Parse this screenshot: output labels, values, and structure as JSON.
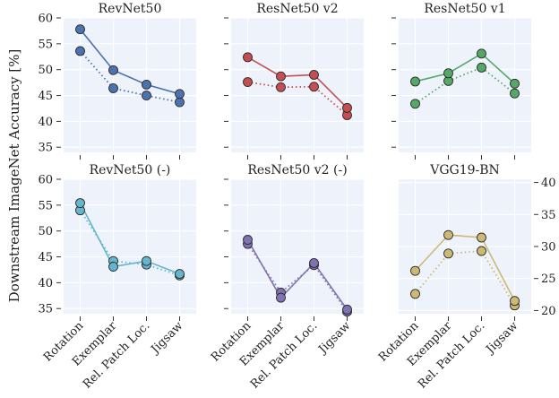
{
  "figure": {
    "ylabel": "Downstream ImageNet Accuracy [%]"
  },
  "chart_data": [
    {
      "type": "line",
      "title": "RevNet50",
      "color": "#4c72b0",
      "categories": [
        "Rotation",
        "Exemplar",
        "Rel. Patch Loc.",
        "Jigsaw"
      ],
      "ylim": [
        34,
        60
      ],
      "yticks": [
        35,
        40,
        45,
        50,
        55,
        60
      ],
      "grid": true,
      "series": [
        {
          "style": "solid",
          "values": [
            57.8,
            49.9,
            47.1,
            45.3
          ]
        },
        {
          "style": "dotted",
          "values": [
            53.6,
            46.4,
            45.0,
            43.7
          ]
        }
      ]
    },
    {
      "type": "line",
      "title": "ResNet50 v2",
      "color": "#c44e52",
      "categories": [
        "Rotation",
        "Exemplar",
        "Rel. Patch Loc.",
        "Jigsaw"
      ],
      "ylim": [
        34,
        60
      ],
      "yticks": [
        35,
        40,
        45,
        50,
        55,
        60
      ],
      "grid": true,
      "series": [
        {
          "style": "solid",
          "values": [
            52.4,
            48.7,
            49.0,
            42.6
          ]
        },
        {
          "style": "dotted",
          "values": [
            47.6,
            46.6,
            46.7,
            41.2
          ]
        }
      ]
    },
    {
      "type": "line",
      "title": "ResNet50 v1",
      "color": "#55a868",
      "categories": [
        "Rotation",
        "Exemplar",
        "Rel. Patch Loc.",
        "Jigsaw"
      ],
      "ylim": [
        34,
        60
      ],
      "yticks": [
        35,
        40,
        45,
        50,
        55,
        60
      ],
      "grid": true,
      "series": [
        {
          "style": "solid",
          "values": [
            47.7,
            49.3,
            53.1,
            47.3
          ]
        },
        {
          "style": "dotted",
          "values": [
            43.4,
            47.8,
            50.4,
            45.4
          ]
        }
      ]
    },
    {
      "type": "line",
      "title": "RevNet50 (-)",
      "color": "#64b5cd",
      "categories": [
        "Rotation",
        "Exemplar",
        "Rel. Patch Loc.",
        "Jigsaw"
      ],
      "ylim": [
        34,
        60
      ],
      "yticks": [
        35,
        40,
        45,
        50,
        55,
        60
      ],
      "grid": true,
      "series": [
        {
          "style": "solid",
          "values": [
            55.4,
            43.1,
            44.2,
            41.7
          ]
        },
        {
          "style": "dotted",
          "values": [
            54.0,
            44.2,
            43.5,
            41.4
          ]
        }
      ]
    },
    {
      "type": "line",
      "title": "ResNet50 v2 (-)",
      "color": "#8172b2",
      "categories": [
        "Rotation",
        "Exemplar",
        "Rel. Patch Loc.",
        "Jigsaw"
      ],
      "ylim": [
        34,
        60
      ],
      "yticks": [
        35,
        40,
        45,
        50,
        55,
        60
      ],
      "grid": true,
      "series": [
        {
          "style": "solid",
          "values": [
            48.3,
            37.1,
            43.8,
            34.8
          ]
        },
        {
          "style": "dotted",
          "values": [
            47.5,
            38.1,
            43.4,
            34.4
          ]
        }
      ]
    },
    {
      "type": "line",
      "title": "VGG19-BN",
      "color": "#ccb974",
      "categories": [
        "Rotation",
        "Exemplar",
        "Rel. Patch Loc.",
        "Jigsaw"
      ],
      "ylim": [
        19.5,
        40.5
      ],
      "yticks": [
        20,
        25,
        30,
        35,
        40
      ],
      "yaxis_side": "right",
      "grid": true,
      "series": [
        {
          "style": "solid",
          "values": [
            26.2,
            31.8,
            31.4,
            21.5
          ]
        },
        {
          "style": "dotted",
          "values": [
            22.6,
            28.9,
            29.3,
            20.8
          ]
        }
      ]
    }
  ]
}
